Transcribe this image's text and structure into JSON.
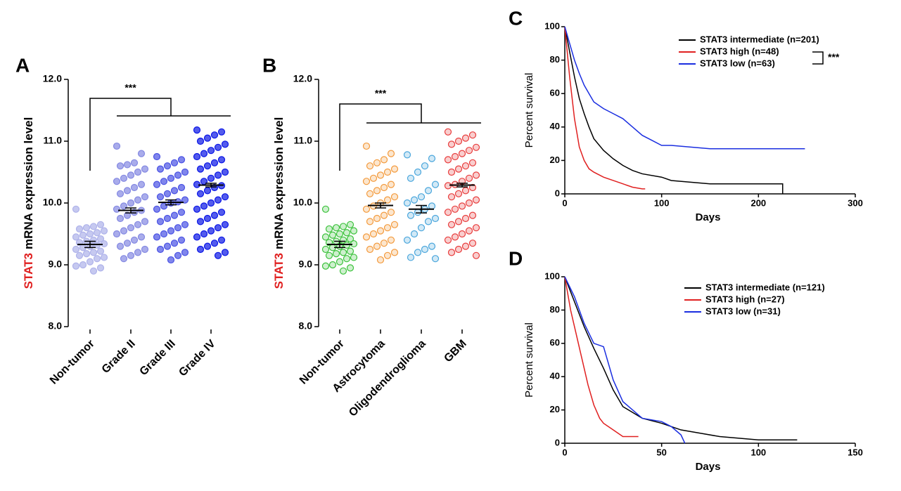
{
  "chart_data": [
    {
      "type": "dot-scatter",
      "panel": "A",
      "ylabel_gene": "STAT3",
      "ylabel": "mRNA expression level",
      "ylim": [
        8,
        12
      ],
      "yticks": [
        {
          "value": 8,
          "label": "8.0"
        },
        {
          "value": 9,
          "label": "9.0"
        },
        {
          "value": 10,
          "label": "10.0"
        },
        {
          "value": 11,
          "label": "11.0"
        },
        {
          "value": 12,
          "label": "12.0"
        }
      ],
      "categories": [
        "Non-tumor",
        "Grade II",
        "Grade III",
        "Grade IV"
      ],
      "colors": [
        "#aeb2ea",
        "#8489e2",
        "#4a52e4",
        "#0a16e6"
      ],
      "marker": "filled",
      "points": [
        [
          9.9,
          9.65,
          9.62,
          9.6,
          9.58,
          9.55,
          9.52,
          9.5,
          9.48,
          9.45,
          9.42,
          9.4,
          9.38,
          9.36,
          9.34,
          9.32,
          9.3,
          9.28,
          9.25,
          9.22,
          9.2,
          9.18,
          9.15,
          9.12,
          9.1,
          9.05,
          9.0,
          8.98,
          8.95,
          8.9
        ],
        [
          10.92,
          10.8,
          10.65,
          10.62,
          10.6,
          10.55,
          10.5,
          10.45,
          10.4,
          10.35,
          10.3,
          10.25,
          10.2,
          10.15,
          10.1,
          10.05,
          10.0,
          9.95,
          9.9,
          9.88,
          9.85,
          9.8,
          9.75,
          9.7,
          9.65,
          9.6,
          9.55,
          9.5,
          9.45,
          9.4,
          9.35,
          9.3,
          9.25,
          9.2,
          9.15,
          9.1
        ],
        [
          10.75,
          10.7,
          10.65,
          10.6,
          10.55,
          10.5,
          10.45,
          10.4,
          10.35,
          10.3,
          10.25,
          10.2,
          10.15,
          10.1,
          10.05,
          10.02,
          10.0,
          9.95,
          9.9,
          9.85,
          9.8,
          9.75,
          9.7,
          9.65,
          9.6,
          9.55,
          9.5,
          9.45,
          9.4,
          9.35,
          9.3,
          9.25,
          9.2,
          9.15,
          9.08
        ],
        [
          11.18,
          11.15,
          11.1,
          11.05,
          11.0,
          10.95,
          10.9,
          10.85,
          10.8,
          10.75,
          10.7,
          10.65,
          10.6,
          10.55,
          10.5,
          10.45,
          10.4,
          10.35,
          10.3,
          10.28,
          10.25,
          10.2,
          10.15,
          10.1,
          10.05,
          10.0,
          9.95,
          9.9,
          9.85,
          9.8,
          9.75,
          9.7,
          9.65,
          9.6,
          9.55,
          9.5,
          9.45,
          9.4,
          9.35,
          9.3,
          9.25,
          9.2,
          9.15
        ]
      ],
      "means": [
        9.33,
        9.88,
        10.01,
        10.29
      ],
      "errors": [
        0.05,
        0.04,
        0.04,
        0.03
      ],
      "annotation": "***"
    },
    {
      "type": "dot-scatter",
      "panel": "B",
      "ylabel_gene": "STAT3",
      "ylabel": "mRNA expression level",
      "ylim": [
        8,
        12
      ],
      "yticks": [
        {
          "value": 8,
          "label": "8.0"
        },
        {
          "value": 9,
          "label": "9.0"
        },
        {
          "value": 10,
          "label": "10.0"
        },
        {
          "value": 11,
          "label": "11.0"
        },
        {
          "value": 12,
          "label": "12.0"
        }
      ],
      "categories": [
        "Non-tumor",
        "Astrocytoma",
        "Oligodendroglioma",
        "GBM"
      ],
      "colors": [
        "#3cc23c",
        "#f39a3c",
        "#4aa6dc",
        "#e83c3c"
      ],
      "marker": "open",
      "points": [
        [
          9.9,
          9.65,
          9.62,
          9.6,
          9.58,
          9.55,
          9.52,
          9.5,
          9.48,
          9.45,
          9.42,
          9.4,
          9.38,
          9.36,
          9.34,
          9.32,
          9.3,
          9.28,
          9.25,
          9.22,
          9.2,
          9.18,
          9.15,
          9.12,
          9.1,
          9.05,
          9.0,
          8.98,
          8.95,
          8.9
        ],
        [
          10.92,
          10.8,
          10.7,
          10.65,
          10.6,
          10.55,
          10.5,
          10.45,
          10.4,
          10.35,
          10.3,
          10.25,
          10.2,
          10.15,
          10.1,
          10.05,
          10.0,
          9.95,
          9.9,
          9.85,
          9.8,
          9.75,
          9.7,
          9.65,
          9.6,
          9.55,
          9.5,
          9.45,
          9.4,
          9.35,
          9.3,
          9.25,
          9.2,
          9.15,
          9.08
        ],
        [
          10.78,
          10.72,
          10.6,
          10.5,
          10.4,
          10.3,
          10.2,
          10.1,
          10.05,
          10.0,
          9.95,
          9.9,
          9.85,
          9.8,
          9.75,
          9.7,
          9.6,
          9.5,
          9.4,
          9.3,
          9.25,
          9.2,
          9.12,
          9.1
        ],
        [
          11.15,
          11.1,
          11.05,
          11.0,
          10.95,
          10.9,
          10.85,
          10.8,
          10.75,
          10.7,
          10.65,
          10.6,
          10.55,
          10.5,
          10.45,
          10.4,
          10.35,
          10.3,
          10.28,
          10.25,
          10.2,
          10.15,
          10.1,
          10.05,
          10.0,
          9.95,
          9.9,
          9.85,
          9.8,
          9.75,
          9.7,
          9.65,
          9.6,
          9.55,
          9.5,
          9.45,
          9.4,
          9.35,
          9.3,
          9.25,
          9.2,
          9.15
        ]
      ],
      "means": [
        9.33,
        9.96,
        9.9,
        10.29
      ],
      "errors": [
        0.05,
        0.04,
        0.06,
        0.03
      ],
      "annotation": "***"
    },
    {
      "type": "survival",
      "panel": "C",
      "xlabel": "Days",
      "ylabel": "Percent survival",
      "xlim": [
        0,
        300
      ],
      "xticks": [
        0,
        100,
        200,
        300
      ],
      "ylim": [
        0,
        100
      ],
      "yticks": [
        0,
        20,
        40,
        60,
        80,
        100
      ],
      "series": [
        {
          "name": "STAT3 intermediate (n=201)",
          "color": "#000000",
          "x": [
            0,
            5,
            10,
            15,
            20,
            25,
            30,
            40,
            50,
            60,
            70,
            80,
            100,
            110,
            150,
            225,
            225
          ],
          "values": [
            100,
            85,
            70,
            57,
            48,
            40,
            33,
            26,
            21,
            17,
            14,
            12,
            10,
            8,
            6,
            6,
            0
          ]
        },
        {
          "name": "STAT3 high (n=48)",
          "color": "#e02020",
          "x": [
            0,
            5,
            10,
            15,
            20,
            25,
            30,
            40,
            50,
            60,
            70,
            80,
            83
          ],
          "values": [
            100,
            70,
            45,
            28,
            20,
            15,
            13,
            10,
            8,
            6,
            4,
            3,
            3
          ]
        },
        {
          "name": "STAT3 low (n=63)",
          "color": "#1a2ee0",
          "x": [
            0,
            5,
            10,
            15,
            20,
            25,
            30,
            40,
            50,
            60,
            70,
            80,
            90,
            100,
            110,
            150,
            200,
            248
          ],
          "values": [
            100,
            90,
            80,
            72,
            65,
            60,
            55,
            51,
            48,
            45,
            40,
            35,
            32,
            29,
            29,
            27,
            27,
            27
          ]
        }
      ],
      "annotation": "***"
    },
    {
      "type": "survival",
      "panel": "D",
      "xlabel": "Days",
      "ylabel": "Percent survival",
      "xlim": [
        0,
        150
      ],
      "xticks": [
        0,
        50,
        100,
        150
      ],
      "ylim": [
        0,
        100
      ],
      "yticks": [
        0,
        20,
        40,
        60,
        80,
        100
      ],
      "series": [
        {
          "name": "STAT3 intermediate (n=121)",
          "color": "#000000",
          "x": [
            0,
            5,
            10,
            15,
            20,
            25,
            30,
            40,
            50,
            60,
            70,
            80,
            90,
            100,
            120
          ],
          "values": [
            100,
            85,
            70,
            57,
            45,
            32,
            22,
            15,
            12,
            8,
            6,
            4,
            3,
            2,
            2
          ]
        },
        {
          "name": "STAT3 high (n=27)",
          "color": "#e02020",
          "x": [
            0,
            3,
            5,
            8,
            10,
            12,
            15,
            18,
            20,
            25,
            30,
            38
          ],
          "values": [
            100,
            80,
            70,
            55,
            45,
            35,
            23,
            15,
            12,
            8,
            4,
            4
          ]
        },
        {
          "name": "STAT3 low (n=31)",
          "color": "#1a2ee0",
          "x": [
            0,
            5,
            10,
            15,
            20,
            22,
            25,
            30,
            40,
            50,
            55,
            60,
            62
          ],
          "values": [
            100,
            88,
            72,
            60,
            58,
            50,
            38,
            25,
            15,
            13,
            10,
            5,
            0
          ]
        }
      ]
    }
  ]
}
